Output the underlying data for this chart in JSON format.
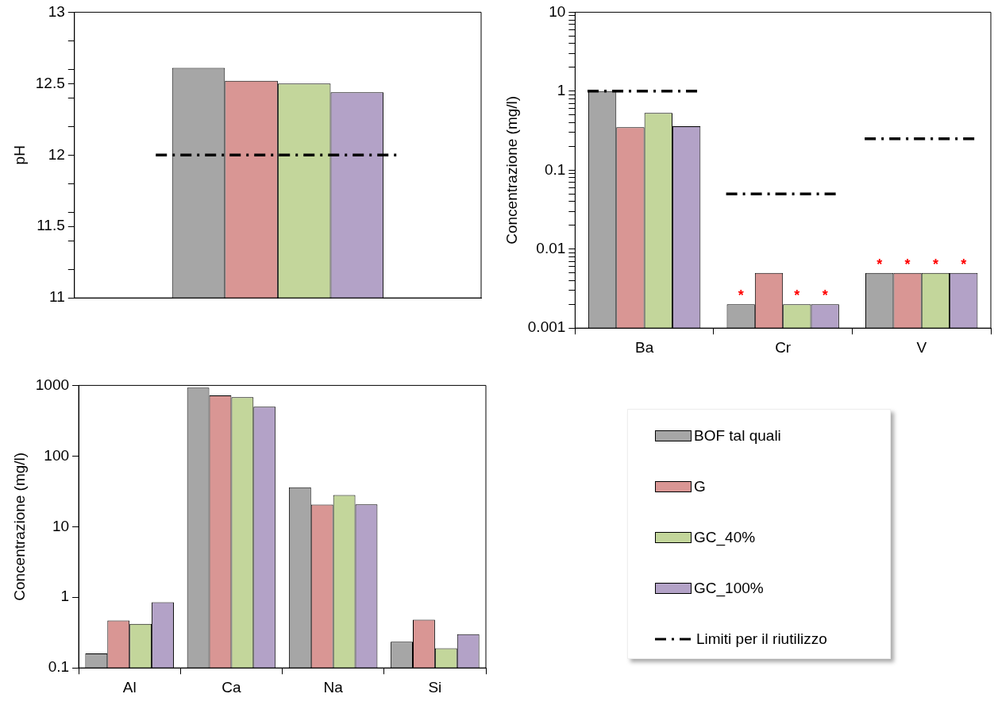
{
  "chart_data": [
    {
      "type": "bar",
      "categories": [
        null
      ],
      "ylabel": "pH",
      "ylim": [
        11,
        13
      ],
      "yticks": [
        11,
        {
          "value": 11.2,
          "label": null
        },
        {
          "value": 11.4,
          "label": null
        },
        11.5,
        {
          "value": 11.6,
          "label": null
        },
        {
          "value": 11.8,
          "label": null
        },
        12,
        {
          "value": 12.2,
          "label": null
        },
        {
          "value": 12.4,
          "label": null
        },
        12.5,
        {
          "value": 12.6,
          "label": null
        },
        {
          "value": 12.8,
          "label": null
        },
        13
      ],
      "legend": false,
      "ref_lines": [
        {
          "axis": "y",
          "value": 12,
          "color": "#000000",
          "line_style": "dashed"
        }
      ],
      "series": [
        {
          "color": "#a6a6a6",
          "values": [
            12.61
          ]
        },
        {
          "color": "#d99694",
          "values": [
            12.52
          ]
        },
        {
          "color": "#c3d69b",
          "values": [
            12.5
          ]
        },
        {
          "color": "#b3a2c7",
          "values": [
            12.44
          ]
        }
      ]
    },
    {
      "type": "bar",
      "categories": [
        "Ba",
        "Cr",
        "V"
      ],
      "ylabel": "Concentrazione (mg/l)",
      "log": true,
      "ylim": [
        0.001,
        10
      ],
      "yticks": [
        0.001,
        {
          "value": 0.002,
          "label": null
        },
        {
          "value": 0.003,
          "label": null
        },
        {
          "value": 0.004,
          "label": null
        },
        {
          "value": 0.005,
          "label": null
        },
        {
          "value": 0.006,
          "label": null
        },
        {
          "value": 0.007,
          "label": null
        },
        {
          "value": 0.008,
          "label": null
        },
        {
          "value": 0.009,
          "label": null
        },
        0.01,
        {
          "value": 0.02,
          "label": null
        },
        {
          "value": 0.03,
          "label": null
        },
        {
          "value": 0.04,
          "label": null
        },
        {
          "value": 0.05,
          "label": null
        },
        {
          "value": 0.06,
          "label": null
        },
        {
          "value": 0.07,
          "label": null
        },
        {
          "value": 0.08,
          "label": null
        },
        {
          "value": 0.09,
          "label": null
        },
        0.1,
        {
          "value": 0.2,
          "label": null
        },
        {
          "value": 0.3,
          "label": null
        },
        {
          "value": 0.4,
          "label": null
        },
        {
          "value": 0.5,
          "label": null
        },
        {
          "value": 0.6,
          "label": null
        },
        {
          "value": 0.7,
          "label": null
        },
        {
          "value": 0.8,
          "label": null
        },
        {
          "value": 0.9,
          "label": null
        },
        1,
        {
          "value": 2,
          "label": null
        },
        {
          "value": 3,
          "label": null
        },
        {
          "value": 4,
          "label": null
        },
        {
          "value": 5,
          "label": null
        },
        {
          "value": 6,
          "label": null
        },
        {
          "value": 7,
          "label": null
        },
        {
          "value": 8,
          "label": null
        },
        {
          "value": 9,
          "label": null
        },
        10
      ],
      "legend": "bottom",
      "ref_lines": [
        {
          "axis": "y",
          "value": 1,
          "label": "Limiti per il riutilizzo",
          "color": "#000000",
          "line_style": "dashed"
        },
        {
          "axis": "y",
          "value": 0.05,
          "color": "#000000",
          "line_style": "dashed"
        },
        {
          "axis": "y",
          "value": 0.25,
          "color": "#000000",
          "line_style": "dashed"
        }
      ],
      "series": [
        {
          "name": "BOF tal quali",
          "color": "#a6a6a6",
          "values": [
            1.0,
            0.002,
            0.005
          ],
          "value_labels": [
            null,
            "*",
            "*"
          ]
        },
        {
          "name": "G",
          "color": "#d99694",
          "values": [
            0.35,
            0.005,
            0.005
          ],
          "value_labels": [
            null,
            null,
            "*"
          ]
        },
        {
          "name": "GC_40%",
          "color": "#c3d69b",
          "values": [
            0.53,
            0.002,
            0.005
          ],
          "value_labels": [
            null,
            "*",
            "*"
          ]
        },
        {
          "name": "GC_100%",
          "color": "#b3a2c7",
          "values": [
            0.36,
            0.002,
            0.005
          ],
          "value_labels": [
            null,
            "*",
            "*"
          ]
        }
      ]
    },
    {
      "type": "bar",
      "categories": [
        "Al",
        "Ca",
        "Na",
        "Si"
      ],
      "ylabel": "Concentrazione (mg/l)",
      "log": true,
      "ylim": [
        0.1,
        1000
      ],
      "yticks": [
        0.1,
        1,
        10,
        100,
        1000
      ],
      "legend": false,
      "series": [
        {
          "color": "#a6a6a6",
          "values": [
            0.16,
            930,
            36,
            0.235
          ]
        },
        {
          "color": "#d99694",
          "values": [
            0.47,
            720,
            20.5,
            0.48
          ]
        },
        {
          "color": "#c3d69b",
          "values": [
            0.42,
            680,
            28,
            0.19
          ]
        },
        {
          "color": "#b3a2c7",
          "values": [
            0.85,
            500,
            20.7,
            0.3
          ]
        }
      ]
    }
  ]
}
